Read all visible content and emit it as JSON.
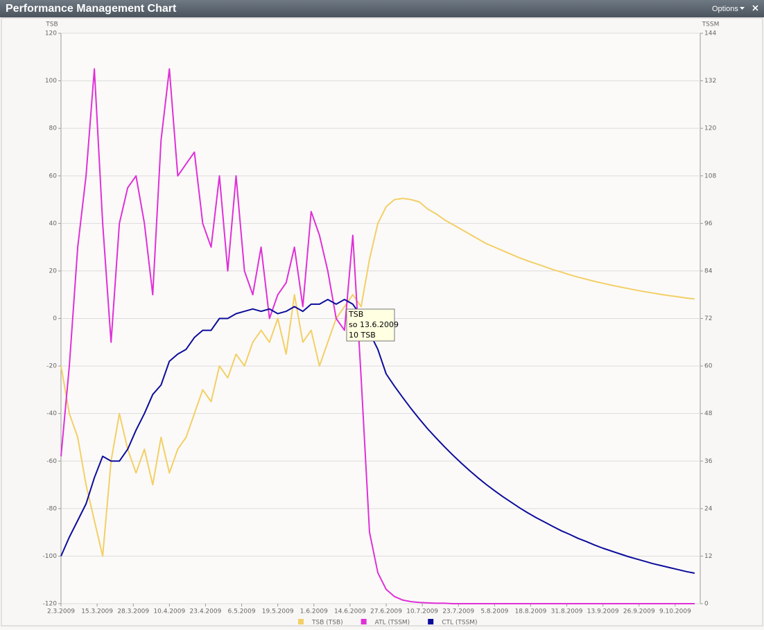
{
  "window": {
    "title": "Performance Management Chart",
    "options": "Options"
  },
  "chart_data": {
    "type": "line",
    "ylabel": "TSB",
    "y2label": "TSSM",
    "x": [
      "2.3.2009",
      "5.3.2009",
      "8.3.2009",
      "11.3.2009",
      "14.3.2009",
      "17.3.2009",
      "20.3.2009",
      "23.3.2009",
      "26.3.2009",
      "29.3.2009",
      "1.4.2009",
      "4.4.2009",
      "7.4.2009",
      "10.4.2009",
      "13.4.2009",
      "16.4.2009",
      "19.4.2009",
      "22.4.2009",
      "25.4.2009",
      "28.4.2009",
      "1.5.2009",
      "4.5.2009",
      "7.5.2009",
      "10.5.2009",
      "13.5.2009",
      "16.5.2009",
      "19.5.2009",
      "22.5.2009",
      "25.5.2009",
      "28.5.2009",
      "31.5.2009",
      "3.6.2009",
      "6.6.2009",
      "9.6.2009",
      "12.6.2009",
      "15.6.2009",
      "18.6.2009",
      "21.6.2009",
      "24.6.2009",
      "27.6.2009",
      "30.6.2009",
      "3.7.2009",
      "6.7.2009",
      "9.7.2009",
      "12.7.2009",
      "15.7.2009",
      "18.7.2009",
      "21.7.2009",
      "24.7.2009",
      "27.7.2009",
      "30.7.2009",
      "2.8.2009",
      "5.8.2009",
      "8.8.2009",
      "11.8.2009",
      "14.8.2009",
      "17.8.2009",
      "20.8.2009",
      "23.8.2009",
      "26.8.2009",
      "29.8.2009",
      "1.9.2009",
      "4.9.2009",
      "7.9.2009",
      "10.9.2009",
      "13.9.2009",
      "16.9.2009",
      "19.9.2009",
      "22.9.2009",
      "25.9.2009",
      "28.9.2009",
      "1.10.2009",
      "4.10.2009",
      "7.10.2009",
      "10.10.2009",
      "13.10.2009",
      "16.10.2009"
    ],
    "xlim": [
      "2.3.2009",
      "18.10.2009"
    ],
    "xticks": [
      "2.3.2009",
      "15.3.2009",
      "28.3.2009",
      "10.4.2009",
      "23.4.2009",
      "6.5.2009",
      "19.5.2009",
      "1.6.2009",
      "14.6.2009",
      "27.6.2009",
      "10.7.2009",
      "23.7.2009",
      "5.8.2009",
      "18.8.2009",
      "31.8.2009",
      "13.9.2009",
      "26.9.2009",
      "9.10.2009"
    ],
    "ylim": [
      -120,
      120
    ],
    "yticks": [
      -120,
      -100,
      -80,
      -60,
      -40,
      -20,
      0,
      20,
      40,
      60,
      80,
      100,
      120
    ],
    "y2lim": [
      0,
      144
    ],
    "y2ticks": [
      0,
      12,
      24,
      36,
      48,
      60,
      72,
      84,
      96,
      108,
      120,
      132,
      144
    ],
    "grid": true,
    "legend": "bottom",
    "series": [
      {
        "name": "TSB (TSB)",
        "color": "#f3cf66",
        "values": [
          -20,
          -40,
          -50,
          -70,
          -85,
          -100,
          -60,
          -40,
          -55,
          -65,
          -55,
          -70,
          -50,
          -65,
          -55,
          -50,
          -40,
          -30,
          -35,
          -20,
          -25,
          -15,
          -20,
          -10,
          -5,
          -10,
          0,
          -15,
          10,
          -10,
          -5,
          -20,
          -10,
          0,
          5,
          10,
          5,
          25,
          40,
          47,
          50,
          50.5,
          50,
          49,
          46,
          44,
          41.5,
          39.5,
          37.5,
          35.5,
          33.5,
          31.5,
          30,
          28.5,
          27,
          25.5,
          24.2,
          23,
          21.8,
          20.6,
          19.5,
          18.4,
          17.4,
          16.5,
          15.6,
          14.8,
          14,
          13.3,
          12.6,
          11.9,
          11.3,
          10.7,
          10.1,
          9.6,
          9.1,
          8.6,
          8.2
        ]
      },
      {
        "name": "ATL (TSSM)",
        "color": "#e02fd8",
        "axis": "y2",
        "values": [
          37.2,
          60,
          90,
          108,
          135,
          96,
          66,
          96,
          105,
          108,
          96,
          78,
          117,
          135,
          108,
          111,
          114,
          96,
          90,
          108,
          84,
          108,
          84,
          78,
          90,
          72,
          78,
          81,
          90,
          75,
          99,
          93,
          84,
          72,
          69,
          93,
          57,
          18,
          7.8,
          3.6,
          1.8,
          0.9,
          0.5,
          0.3,
          0.2,
          0.1,
          0.1,
          0,
          0,
          0,
          0,
          0,
          0,
          0,
          0,
          0,
          0,
          0,
          0,
          0,
          0,
          0,
          0,
          0,
          0,
          0,
          0,
          0,
          0,
          0,
          0,
          0,
          0,
          0,
          0,
          0,
          0
        ]
      },
      {
        "name": "CTL (TSSM)",
        "color": "#0c0c9c",
        "axis": "y2",
        "values": [
          12,
          16.8,
          21,
          25.2,
          31.8,
          37.2,
          36,
          36,
          39,
          43.8,
          48,
          52.8,
          55.2,
          61.2,
          63,
          64.2,
          67.2,
          69,
          69,
          72,
          72,
          73.2,
          73.8,
          74.4,
          73.8,
          74.4,
          73.2,
          73.8,
          75,
          73.8,
          75.6,
          75.6,
          76.8,
          75.6,
          76.8,
          75.6,
          72.6,
          68.4,
          64.2,
          58,
          54.9,
          52,
          49.2,
          46.6,
          44.1,
          41.8,
          39.6,
          37.5,
          35.5,
          33.6,
          31.8,
          30.1,
          28.5,
          27,
          25.6,
          24.2,
          22.9,
          21.7,
          20.6,
          19.5,
          18.4,
          17.5,
          16.5,
          15.7,
          14.8,
          14,
          13.3,
          12.6,
          11.9,
          11.3,
          10.7,
          10.1,
          9.6,
          9.1,
          8.6,
          8.1,
          7.7
        ]
      }
    ],
    "tooltip": {
      "title": "TSB",
      "date": "so 13.6.2009",
      "value": "10 TSB"
    }
  }
}
